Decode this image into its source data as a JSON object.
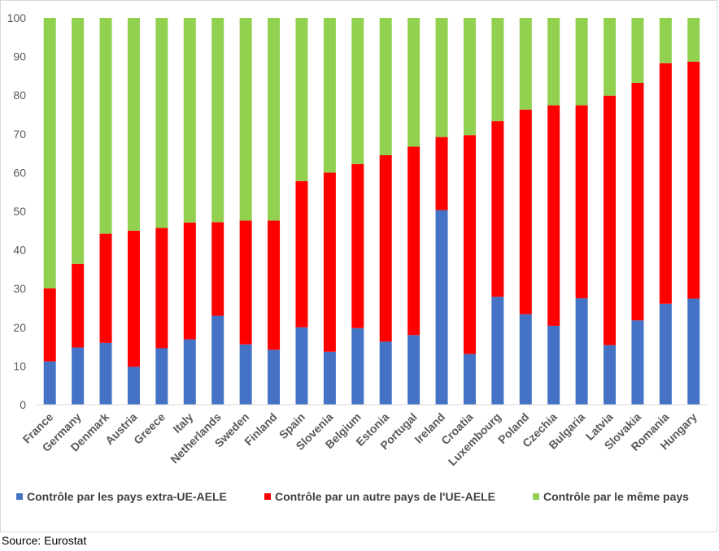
{
  "source_label": "Source: Eurostat",
  "chart_data": {
    "type": "bar",
    "stacked": true,
    "title": "",
    "xlabel": "",
    "ylabel": "",
    "ylim": [
      0,
      100
    ],
    "yticks": [
      0,
      10,
      20,
      30,
      40,
      50,
      60,
      70,
      80,
      90,
      100
    ],
    "grid": false,
    "legend_position": "bottom",
    "categories": [
      "France",
      "Germany",
      "Denmark",
      "Austria",
      "Greece",
      "Italy",
      "Netherlands",
      "Sweden",
      "Finland",
      "Spain",
      "Slovenia",
      "Belgium",
      "Estonia",
      "Portugal",
      "Ireland",
      "Croatia",
      "Luxembourg",
      "Poland",
      "Czechia",
      "Bulgaria",
      "Latvia",
      "Slovakia",
      "Romania",
      "Hungary"
    ],
    "series": [
      {
        "name": "Contrôle par les pays extra-UE-AELE",
        "color": "#4472c4",
        "values": [
          11.2,
          14.8,
          16.0,
          9.8,
          14.6,
          16.9,
          23.0,
          15.6,
          14.2,
          20.0,
          13.7,
          19.8,
          16.3,
          18.0,
          50.3,
          13.1,
          27.9,
          23.4,
          20.4,
          27.5,
          15.4,
          21.8,
          26.1,
          27.4
        ]
      },
      {
        "name": "Contrôle par un autre pays de l'UE-AELE",
        "color": "#ff0000",
        "values": [
          18.9,
          21.6,
          28.2,
          35.2,
          31.1,
          30.2,
          24.2,
          32.0,
          33.4,
          37.8,
          46.3,
          42.4,
          48.2,
          48.7,
          18.9,
          56.6,
          45.4,
          52.9,
          57.0,
          49.9,
          64.5,
          61.4,
          62.2,
          61.3
        ]
      },
      {
        "name": "Contrôle par le même pays",
        "color": "#92d050",
        "values": [
          69.9,
          63.6,
          55.8,
          55.0,
          54.3,
          52.9,
          52.8,
          52.4,
          52.4,
          42.2,
          40.0,
          37.8,
          35.5,
          33.3,
          30.8,
          30.3,
          26.7,
          23.7,
          22.6,
          22.6,
          20.1,
          16.8,
          11.7,
          11.3
        ]
      }
    ]
  }
}
